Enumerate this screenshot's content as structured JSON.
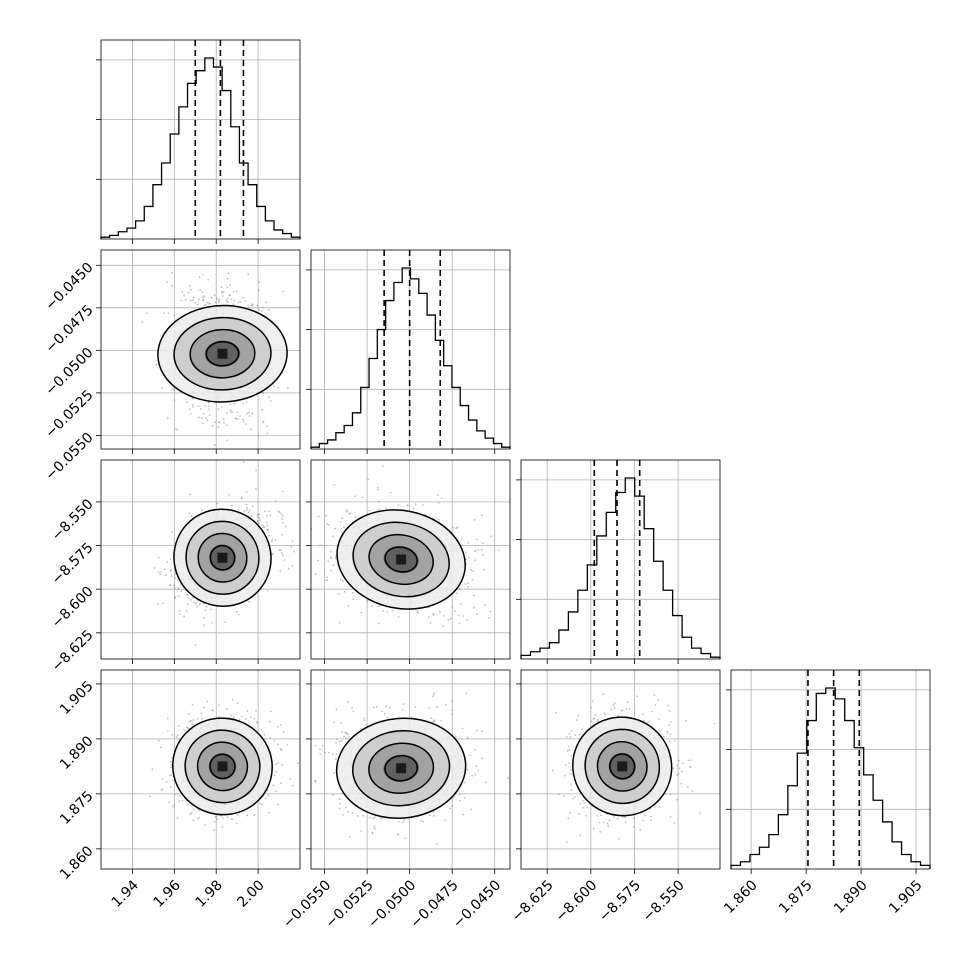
{
  "chart_data": {
    "type": "corner",
    "grid": true,
    "parameters": [
      {
        "range": [
          1.925,
          2.02
        ],
        "ticks": [
          "1.94",
          "1.96",
          "1.98",
          "2.00"
        ],
        "tick_values": [
          1.94,
          1.96,
          1.98,
          2.0
        ],
        "quantiles": [
          1.97,
          1.982,
          1.993
        ]
      },
      {
        "range": [
          -0.0558,
          -0.0441
        ],
        "ticks": [
          "−0.0550",
          "−0.0525",
          "−0.0500",
          "−0.0475",
          "−0.0450"
        ],
        "tick_values": [
          -0.055,
          -0.0525,
          -0.05,
          -0.0475,
          -0.045
        ],
        "quantiles": [
          -0.0515,
          -0.05,
          -0.0482
        ]
      },
      {
        "range": [
          -8.64,
          -8.526
        ],
        "ticks": [
          "−8.625",
          "−8.600",
          "−8.575",
          "−8.550"
        ],
        "tick_values": [
          -8.625,
          -8.6,
          -8.575,
          -8.55
        ],
        "quantiles": [
          -8.598,
          -8.585,
          -8.572
        ]
      },
      {
        "range": [
          1.8545,
          1.9088
        ],
        "ticks": [
          "1.860",
          "1.875",
          "1.890",
          "1.905"
        ],
        "tick_values": [
          1.86,
          1.875,
          1.89,
          1.905
        ],
        "quantiles": [
          1.8755,
          1.8825,
          1.8895
        ]
      }
    ],
    "histograms": [
      [
        1,
        2,
        4,
        6,
        10,
        18,
        30,
        42,
        58,
        73,
        86,
        93,
        100,
        95,
        82,
        62,
        42,
        30,
        18,
        10,
        5,
        3,
        1
      ],
      [
        1,
        3,
        5,
        9,
        13,
        20,
        34,
        50,
        66,
        82,
        92,
        100,
        94,
        86,
        74,
        60,
        46,
        34,
        24,
        16,
        10,
        6,
        3,
        1
      ],
      [
        2,
        4,
        6,
        9,
        16,
        26,
        38,
        52,
        68,
        81,
        92,
        100,
        90,
        72,
        54,
        38,
        24,
        12,
        6,
        3,
        1
      ],
      [
        2,
        4,
        8,
        12,
        19,
        30,
        46,
        64,
        82,
        97,
        100,
        94,
        82,
        67,
        52,
        38,
        26,
        15,
        8,
        4,
        2
      ]
    ],
    "joint": [
      {
        "pair": [
          0,
          1
        ],
        "center": [
          1.983,
          -0.0502
        ],
        "sigma": [
          0.0115,
          0.0019
        ],
        "rho": -0.02
      },
      {
        "pair": [
          0,
          2
        ],
        "center": [
          1.983,
          -8.582
        ],
        "sigma": [
          0.0115,
          0.014
        ],
        "rho": 0.3
      },
      {
        "pair": [
          1,
          2
        ],
        "center": [
          -0.0505,
          -8.583
        ],
        "sigma": [
          0.0019,
          0.014
        ],
        "rho": -0.12
      },
      {
        "pair": [
          0,
          3
        ],
        "center": [
          1.983,
          1.8825
        ],
        "sigma": [
          0.0115,
          0.0068
        ],
        "rho": 0.02
      },
      {
        "pair": [
          1,
          3
        ],
        "center": [
          -0.0505,
          1.882
        ],
        "sigma": [
          0.0019,
          0.0068
        ],
        "rho": 0.05
      },
      {
        "pair": [
          2,
          3
        ],
        "center": [
          -8.582,
          1.8825
        ],
        "sigma": [
          0.014,
          0.0068
        ],
        "rho": 0.12
      }
    ]
  }
}
